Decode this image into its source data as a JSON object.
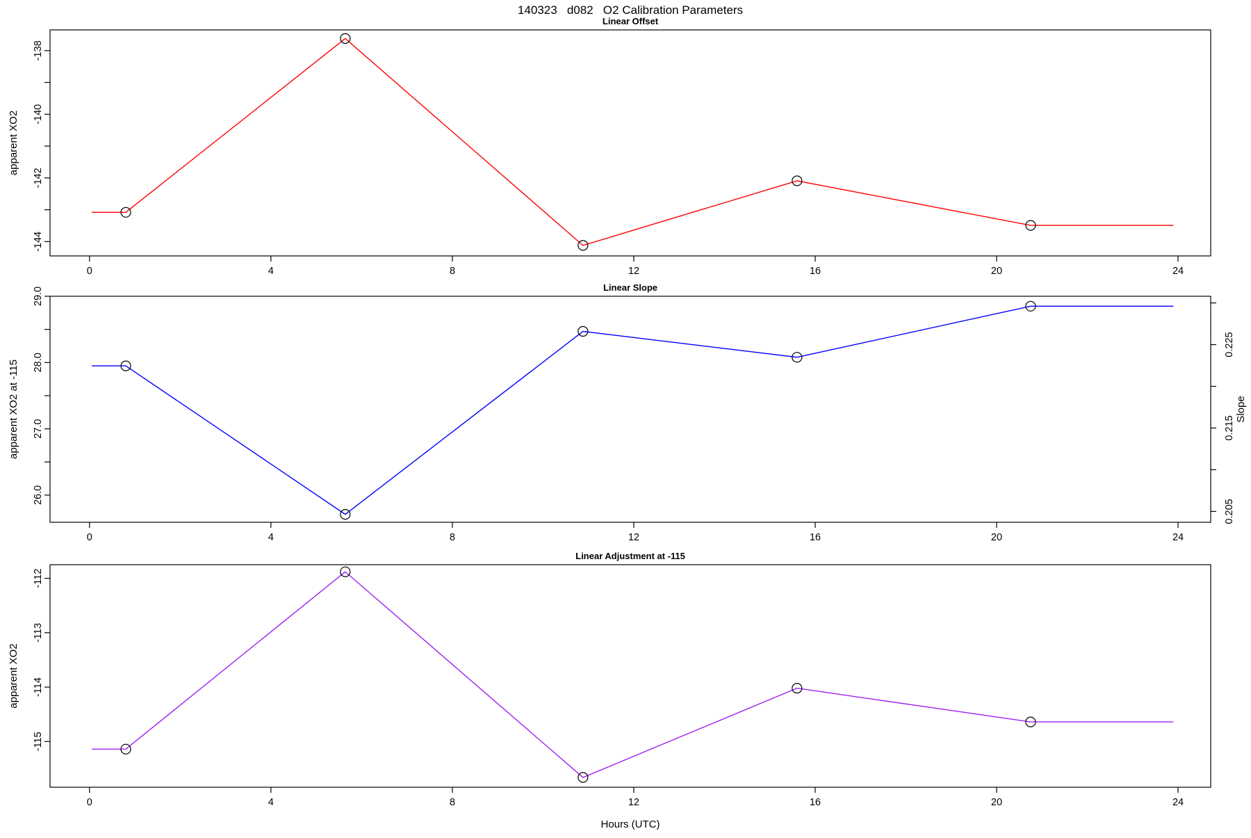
{
  "figure": {
    "title": "140323   d082   O2 Calibration Parameters",
    "background": "#ffffff",
    "axis_color": "#000000",
    "marker": "open-circle",
    "marker_color": "#000000"
  },
  "chart_data": [
    {
      "type": "line",
      "title": "Linear Offset",
      "ylabel": "apparent XO2",
      "color": "#ff0000",
      "x": [
        0.8,
        5.64,
        10.88,
        15.6,
        20.75
      ],
      "values": [
        -143.08,
        -137.62,
        -144.12,
        -142.09,
        -143.49
      ],
      "line_extend": [
        0.05,
        23.9
      ],
      "xlim": [
        -0.87,
        24.72
      ],
      "xticks": [
        0,
        4,
        8,
        12,
        16,
        20,
        24
      ],
      "ylim": [
        -144.45,
        -137.35
      ],
      "yticks": [
        -144,
        -143,
        -142,
        -141,
        -140,
        -139,
        -138
      ],
      "ytick_labels": [
        "-144",
        "",
        "-142",
        "",
        "-140",
        "",
        "-138"
      ],
      "grid": false,
      "legend": "none"
    },
    {
      "type": "line",
      "title": "Linear Slope",
      "ylabel": "apparent XO2 at -115",
      "ylabel_right": "Slope",
      "color": "#0000ff",
      "x": [
        0.8,
        5.64,
        10.88,
        15.6,
        20.75
      ],
      "values": [
        27.95,
        25.71,
        28.47,
        28.08,
        28.85
      ],
      "line_extend": [
        0.05,
        23.9
      ],
      "xlim": [
        -0.87,
        24.72
      ],
      "xticks": [
        0,
        4,
        8,
        12,
        16,
        20,
        24
      ],
      "ylim": [
        25.59,
        29.0
      ],
      "yticks": [
        26.0,
        26.5,
        27.0,
        27.5,
        28.0,
        28.5,
        29.0
      ],
      "ytick_labels": [
        "26.0",
        "",
        "27.0",
        "",
        "28.0",
        "",
        "29.0"
      ],
      "right_ylim": [
        0.2037,
        0.2308
      ],
      "right_yticks": [
        0.205,
        0.21,
        0.215,
        0.22,
        0.225,
        0.23
      ],
      "right_ytick_labels": [
        "0.205",
        "",
        "0.215",
        "",
        "0.225",
        ""
      ],
      "grid": false,
      "legend": "none"
    },
    {
      "type": "line",
      "title": "Linear Adjustment at -115",
      "ylabel": "apparent XO2",
      "xlabel": "Hours (UTC)",
      "color": "#a020f0",
      "x": [
        0.8,
        5.64,
        10.88,
        15.6,
        20.75
      ],
      "values": [
        -115.14,
        -111.88,
        -115.66,
        -114.02,
        -114.64
      ],
      "line_extend": [
        0.05,
        23.9
      ],
      "xlim": [
        -0.87,
        24.72
      ],
      "xticks": [
        0,
        4,
        8,
        12,
        16,
        20,
        24
      ],
      "ylim": [
        -115.84,
        -111.75
      ],
      "yticks": [
        -115,
        -114,
        -113,
        -112
      ],
      "ytick_labels": [
        "-115",
        "-114",
        "-113",
        "-112"
      ],
      "grid": false,
      "legend": "none"
    }
  ]
}
